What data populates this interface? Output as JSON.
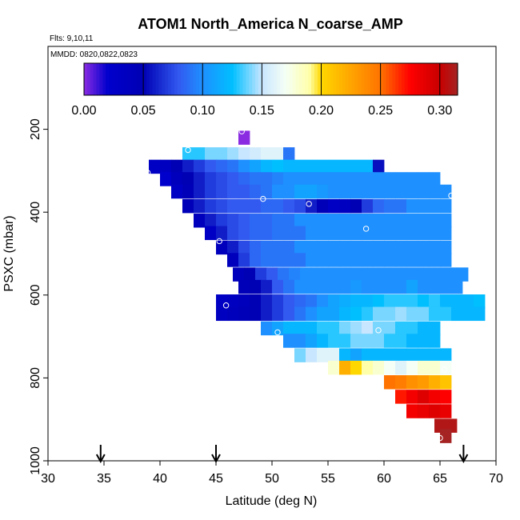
{
  "chart_data": {
    "type": "heatmap",
    "title": "ATOM1 North_America N_coarse_AMP",
    "flights_label": "Flts: 9,10,11",
    "dates_label": "MMDD: 0820,0822,0823",
    "xlabel": "Latitude (deg N)",
    "ylabel": "PSXC (mbar)",
    "xlim": [
      30,
      70
    ],
    "ylim": [
      1000,
      0
    ],
    "x_ticks": [
      "30",
      "35",
      "40",
      "45",
      "50",
      "55",
      "60",
      "65",
      "70"
    ],
    "y_ticks": [
      "200",
      "400",
      "600",
      "800",
      "1000"
    ],
    "colorbar": {
      "ticks": [
        "0.00",
        "0.05",
        "0.10",
        "0.15",
        "0.20",
        "0.25",
        "0.30"
      ],
      "range": [
        0,
        0.315
      ]
    },
    "arrows_at_latitude": [
      34.7,
      45.0,
      67.1
    ],
    "stripes": [
      {
        "p": 220,
        "x0": 47.0,
        "cells": [
          0.0
        ]
      },
      {
        "p": 260,
        "x0": 42.0,
        "cells": [
          0.13,
          0.13,
          0.14,
          0.14,
          0.145,
          0.15,
          0.155,
          0.16,
          0.16,
          0.09
        ]
      },
      {
        "p": 290,
        "x0": 39.0,
        "cells": [
          0.03,
          0.035,
          0.05,
          0.06,
          0.07,
          0.08,
          0.085,
          0.09,
          0.1,
          0.11,
          0.12,
          0.125,
          0.12,
          0.12,
          0.12,
          0.12,
          0.12,
          0.12,
          0.12,
          0.12,
          0.055
        ]
      },
      {
        "p": 320,
        "x0": 40.0,
        "cells": [
          0.02,
          0.04,
          0.05,
          0.06,
          0.07,
          0.075,
          0.08,
          0.085,
          0.09,
          0.09,
          0.095,
          0.1,
          0.1,
          0.1,
          0.1,
          0.1,
          0.1,
          0.1,
          0.1,
          0.1,
          0.1,
          0.1,
          0.1,
          0.1,
          0.1
        ]
      },
      {
        "p": 350,
        "x0": 41.0,
        "cells": [
          0.03,
          0.045,
          0.06,
          0.07,
          0.075,
          0.08,
          0.08,
          0.085,
          0.09,
          0.1,
          0.1,
          0.11,
          0.11,
          0.105,
          0.1,
          0.1,
          0.1,
          0.1,
          0.1,
          0.1,
          0.1,
          0.1,
          0.1,
          0.1,
          0.1
        ]
      },
      {
        "p": 385,
        "x0": 42.0,
        "cells": [
          0.045,
          0.06,
          0.07,
          0.075,
          0.08,
          0.08,
          0.08,
          0.085,
          0.085,
          0.08,
          0.075,
          0.06,
          0.045,
          0.03,
          0.035,
          0.05,
          0.07,
          0.085,
          0.09,
          0.09,
          0.1,
          0.1,
          0.1,
          0.1
        ]
      },
      {
        "p": 420,
        "x0": 43.0,
        "cells": [
          0.04,
          0.06,
          0.07,
          0.075,
          0.08,
          0.085,
          0.085,
          0.09,
          0.09,
          0.1,
          0.1,
          0.1,
          0.1,
          0.1,
          0.1,
          0.1,
          0.1,
          0.1,
          0.1,
          0.1,
          0.1,
          0.1,
          0.1
        ]
      },
      {
        "p": 450,
        "x0": 44.0,
        "cells": [
          0.03,
          0.06,
          0.075,
          0.08,
          0.085,
          0.085,
          0.09,
          0.09,
          0.09,
          0.1,
          0.1,
          0.1,
          0.1,
          0.1,
          0.1,
          0.1,
          0.1,
          0.1,
          0.1,
          0.1,
          0.1,
          0.1
        ]
      },
      {
        "p": 485,
        "x0": 45.0,
        "cells": [
          0.04,
          0.06,
          0.075,
          0.085,
          0.09,
          0.09,
          0.09,
          0.1,
          0.1,
          0.1,
          0.1,
          0.1,
          0.1,
          0.1,
          0.1,
          0.1,
          0.1,
          0.1,
          0.1,
          0.1,
          0.1
        ]
      },
      {
        "p": 515,
        "x0": 46.0,
        "cells": [
          0.04,
          0.07,
          0.085,
          0.09,
          0.09,
          0.09,
          0.09,
          0.1,
          0.1,
          0.1,
          0.1,
          0.1,
          0.1,
          0.1,
          0.1,
          0.1,
          0.1,
          0.1,
          0.1,
          0.1
        ]
      },
      {
        "p": 550,
        "x0": 46.5,
        "cells": [
          0.04,
          0.05,
          0.07,
          0.08,
          0.09,
          0.095,
          0.1,
          0.1,
          0.1,
          0.1,
          0.1,
          0.1,
          0.1,
          0.1,
          0.1,
          0.1,
          0.1,
          0.1,
          0.1,
          0.1,
          0.1
        ]
      },
      {
        "p": 580,
        "x0": 47.0,
        "cells": [
          0.045,
          0.05,
          0.06,
          0.08,
          0.09,
          0.1,
          0.1,
          0.1,
          0.1,
          0.1,
          0.105,
          0.1,
          0.1,
          0.1,
          0.1,
          0.11,
          0.1,
          0.1,
          0.1,
          0.1
        ]
      },
      {
        "p": 615,
        "x0": 45.0,
        "cells": [
          0.03,
          0.035,
          0.04,
          0.05,
          0.06,
          0.07,
          0.08,
          0.085,
          0.09,
          0.1,
          0.11,
          0.115,
          0.12,
          0.12,
          0.125,
          0.13,
          0.13,
          0.13,
          0.125,
          0.13,
          0.12,
          0.12,
          0.12,
          0.125
        ]
      },
      {
        "p": 645,
        "x0": 45.0,
        "cells": [
          0.035,
          0.04,
          0.045,
          0.05,
          0.06,
          0.07,
          0.08,
          0.09,
          0.1,
          0.11,
          0.11,
          0.12,
          0.125,
          0.13,
          0.14,
          0.14,
          0.145,
          0.14,
          0.14,
          0.13,
          0.13,
          0.12,
          0.12,
          0.12
        ]
      },
      {
        "p": 680,
        "x0": 49.0,
        "cells": [
          0.1,
          0.11,
          0.12,
          0.12,
          0.12,
          0.13,
          0.13,
          0.14,
          0.145,
          0.15,
          0.14,
          0.14,
          0.13,
          0.13,
          0.12,
          0.12
        ]
      },
      {
        "p": 710,
        "x0": 51.0,
        "cells": [
          0.1,
          0.1,
          0.11,
          0.12,
          0.13,
          0.13,
          0.14,
          0.14,
          0.14,
          0.13,
          0.13,
          0.12,
          0.12,
          0.12
        ]
      },
      {
        "p": 745,
        "x0": 52.0,
        "cells": [
          0.14,
          0.15,
          0.16,
          0.16,
          0.12,
          0.11,
          0.12,
          0.12,
          0.12,
          0.12,
          0.12,
          0.12,
          0.12,
          0.12
        ]
      },
      {
        "p": 775,
        "x0": 55.0,
        "cells": [
          0.18,
          0.22,
          0.2,
          0.19,
          0.18,
          0.17,
          0.16,
          0.17,
          0.18,
          0.18,
          0.17
        ]
      },
      {
        "p": 810,
        "x0": 60.0,
        "cells": [
          0.25,
          0.245,
          0.235,
          0.23,
          0.22,
          0.21
        ]
      },
      {
        "p": 845,
        "x0": 61.0,
        "cells": [
          0.27,
          0.28,
          0.29,
          0.28,
          0.275
        ]
      },
      {
        "p": 880,
        "x0": 62.0,
        "cells": [
          0.28,
          0.285,
          0.29,
          0.285
        ]
      },
      {
        "p": 915,
        "x0": 64.5,
        "cells": [
          0.31,
          0.31
        ]
      },
      {
        "p": 940,
        "x0": 65.0,
        "cells": [
          0.315
        ]
      }
    ],
    "points": [
      {
        "lat": 47.3,
        "p": 205
      },
      {
        "lat": 42.5,
        "p": 250
      },
      {
        "lat": 38.9,
        "p": 305
      },
      {
        "lat": 49.2,
        "p": 368
      },
      {
        "lat": 53.3,
        "p": 380
      },
      {
        "lat": 66.0,
        "p": 360
      },
      {
        "lat": 58.4,
        "p": 440
      },
      {
        "lat": 45.3,
        "p": 470
      },
      {
        "lat": 45.9,
        "p": 625
      },
      {
        "lat": 50.5,
        "p": 690
      },
      {
        "lat": 59.5,
        "p": 685
      },
      {
        "lat": 65.4,
        "p": 780
      },
      {
        "lat": 65.0,
        "p": 945
      }
    ]
  }
}
